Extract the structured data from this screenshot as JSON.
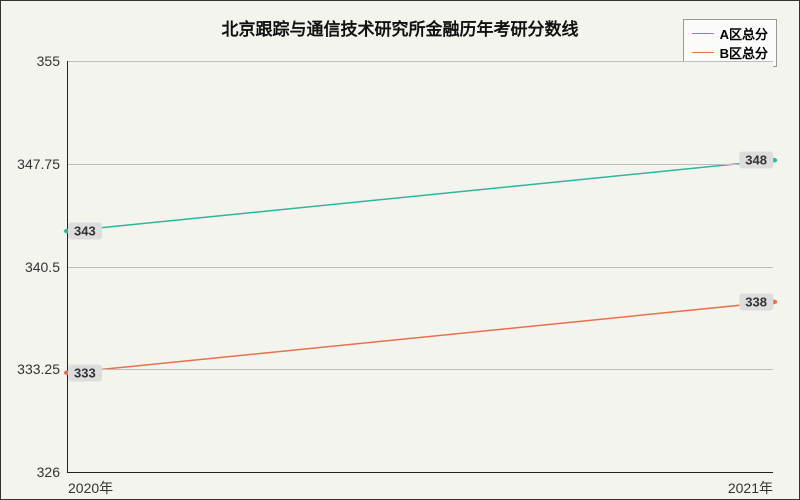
{
  "chart": {
    "type": "line",
    "title": "北京跟踪与通信技术研究所金融历年考研分数线",
    "title_fontsize": 17,
    "background_color": "#f4f4ef",
    "border_color": "#333333",
    "grid_color": "#bdbdbd",
    "title_color": "#111111",
    "axis_color": "#222222",
    "label_fontsize": 14,
    "tick_fontsize": 14,
    "x": {
      "categories": [
        "2020年",
        "2021年"
      ],
      "positions_pct": [
        0,
        100
      ]
    },
    "y": {
      "min": 326,
      "max": 355,
      "ticks": [
        326,
        333.25,
        340.5,
        347.75,
        355
      ],
      "tick_labels": [
        "326",
        "333.25",
        "340.5",
        "347.75",
        "355"
      ]
    },
    "series": [
      {
        "name": "A区总分",
        "color": "#2fb59a",
        "line_width": 1.5,
        "marker": "circle",
        "marker_size": 4,
        "values": [
          343,
          348
        ],
        "value_labels": [
          "343",
          "348"
        ]
      },
      {
        "name": "B区总分",
        "color": "#e8714b",
        "line_width": 1.5,
        "marker": "circle",
        "marker_size": 4,
        "values": [
          333,
          338
        ],
        "value_labels": [
          "333",
          "338"
        ]
      }
    ],
    "legend": {
      "position": "top-right",
      "border_color": "#999999",
      "fontsize": 13,
      "font_weight": "bold"
    },
    "point_label": {
      "background": "#dddddd",
      "font_weight": "bold",
      "fontsize": 13
    }
  }
}
